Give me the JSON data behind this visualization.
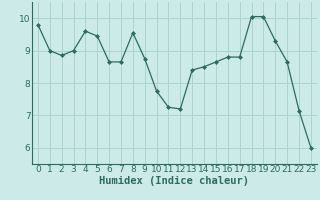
{
  "x": [
    0,
    1,
    2,
    3,
    4,
    5,
    6,
    7,
    8,
    9,
    10,
    11,
    12,
    13,
    14,
    15,
    16,
    17,
    18,
    19,
    20,
    21,
    22,
    23
  ],
  "y": [
    9.8,
    9.0,
    8.85,
    9.0,
    9.6,
    9.45,
    8.65,
    8.65,
    9.55,
    8.75,
    7.75,
    7.25,
    7.2,
    8.4,
    8.5,
    8.65,
    8.8,
    8.8,
    10.05,
    10.05,
    9.3,
    8.65,
    7.15,
    6.0
  ],
  "line_color": "#2e6b5e",
  "marker": "D",
  "marker_size": 2,
  "bg_color": "#cceae7",
  "grid_color": "#aad4d0",
  "xlabel": "Humidex (Indice chaleur)",
  "ylim": [
    5.5,
    10.5
  ],
  "xlim": [
    -0.5,
    23.5
  ],
  "yticks": [
    6,
    7,
    8,
    9,
    10
  ],
  "xticks": [
    0,
    1,
    2,
    3,
    4,
    5,
    6,
    7,
    8,
    9,
    10,
    11,
    12,
    13,
    14,
    15,
    16,
    17,
    18,
    19,
    20,
    21,
    22,
    23
  ],
  "xlabel_fontsize": 7.5,
  "tick_fontsize": 6.5
}
